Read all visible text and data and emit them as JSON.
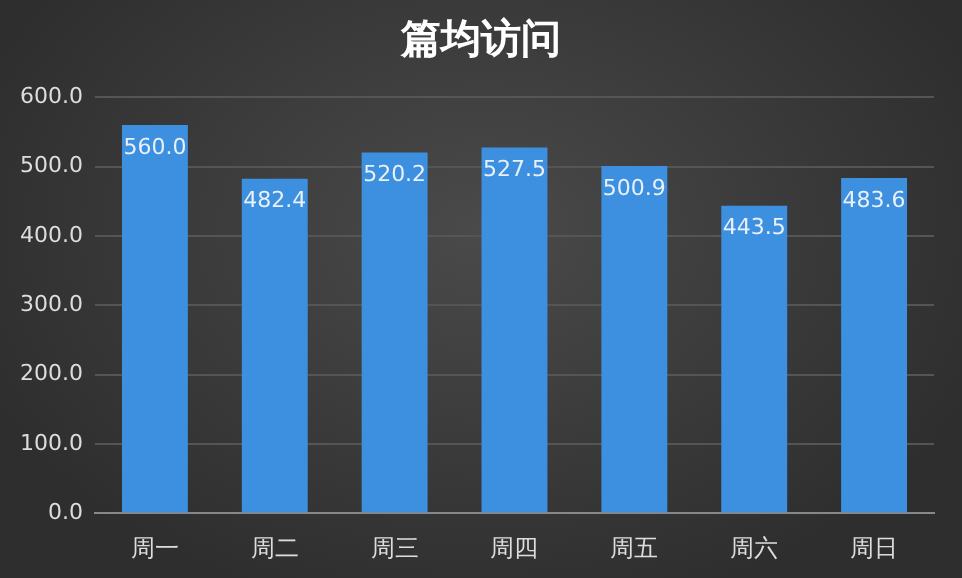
{
  "chart_data": {
    "type": "bar",
    "title": "篇均访问",
    "categories": [
      "周一",
      "周二",
      "周三",
      "周四",
      "周五",
      "周六",
      "周日"
    ],
    "values": [
      560.0,
      482.4,
      520.2,
      527.5,
      500.9,
      443.5,
      483.6
    ],
    "color": "#3d8fdf",
    "ylim": [
      0,
      600
    ],
    "yticks": [
      {
        "value": 0,
        "label": "0.0"
      },
      {
        "value": 100,
        "label": "100.0"
      },
      {
        "value": 200,
        "label": "200.0"
      },
      {
        "value": 300,
        "label": "300.0"
      },
      {
        "value": 400,
        "label": "400.0"
      },
      {
        "value": 500,
        "label": "500.0"
      },
      {
        "value": 600,
        "label": "600.0"
      }
    ],
    "value_labels": [
      "560.0",
      "482.4",
      "520.2",
      "527.5",
      "500.9",
      "443.5",
      "483.6"
    ],
    "grid": "y",
    "legend": false
  }
}
